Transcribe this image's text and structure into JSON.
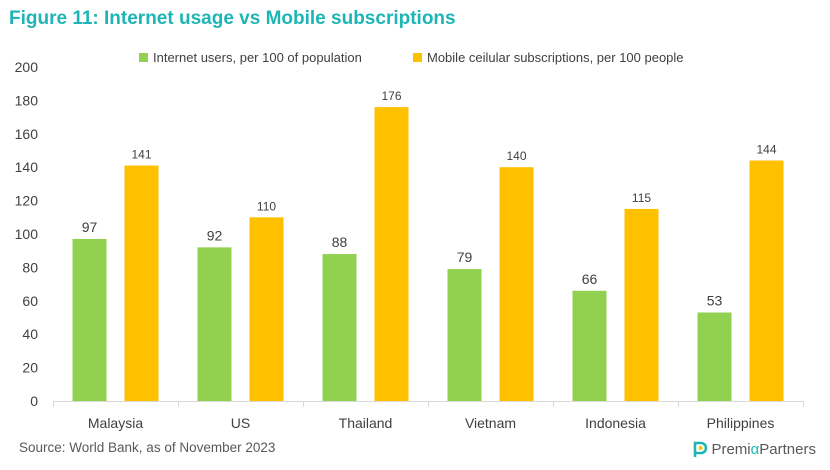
{
  "title": "Figure 11: Internet usage vs Mobile subscriptions",
  "source": "Source: World Bank, as of November 2023",
  "brand": {
    "name_part1": "Premi",
    "name_alpha": "α",
    "name_part2": " Partners"
  },
  "colors": {
    "title": "#1fb5b5",
    "internet": "#92d050",
    "mobile": "#ffc000"
  },
  "chart_data": {
    "type": "bar",
    "categories": [
      "Malaysia",
      "US",
      "Thailand",
      "Vietnam",
      "Indonesia",
      "Philippines"
    ],
    "series": [
      {
        "name": "Internet users, per 100 of population",
        "values": [
          97,
          92,
          88,
          79,
          66,
          53
        ],
        "color": "#92d050"
      },
      {
        "name": "Mobile ceilular subscriptions, per 100 people",
        "values": [
          141,
          110,
          176,
          140,
          115,
          144
        ],
        "color": "#ffc000"
      }
    ],
    "ylim": [
      0,
      200
    ],
    "yticks": [
      0,
      20,
      40,
      60,
      80,
      100,
      120,
      140,
      160,
      180,
      200
    ],
    "grid": false,
    "legend_position": "top",
    "data_labels": true
  }
}
